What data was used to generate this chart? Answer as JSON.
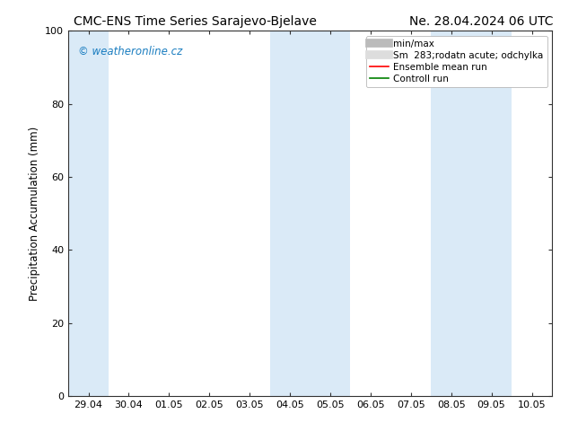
{
  "title_left": "CMC-ENS Time Series Sarajevo-Bjelave",
  "title_right": "Ne. 28.04.2024 06 UTC",
  "ylabel": "Precipitation Accumulation (mm)",
  "ylim": [
    0,
    100
  ],
  "yticks": [
    0,
    20,
    40,
    60,
    80,
    100
  ],
  "background_color": "#ffffff",
  "plot_bg_color": "#ffffff",
  "watermark": "© weatheronline.cz",
  "watermark_color": "#1a7dc0",
  "x_tick_labels": [
    "29.04",
    "30.04",
    "01.05",
    "02.05",
    "03.05",
    "04.05",
    "05.05",
    "06.05",
    "07.05",
    "08.05",
    "09.05",
    "10.05"
  ],
  "x_tick_positions": [
    0,
    1,
    2,
    3,
    4,
    5,
    6,
    7,
    8,
    9,
    10,
    11
  ],
  "xlim": [
    -0.5,
    11.5
  ],
  "shaded_bands": [
    {
      "x_start": -0.5,
      "x_end": 0.5,
      "color": "#daeaf7"
    },
    {
      "x_start": 4.5,
      "x_end": 6.5,
      "color": "#daeaf7"
    },
    {
      "x_start": 8.5,
      "x_end": 10.5,
      "color": "#daeaf7"
    }
  ],
  "legend_entries": [
    {
      "label": "min/max",
      "color": "#bbbbbb",
      "linewidth": 7,
      "linestyle": "-"
    },
    {
      "label": "Sm  283;rodatn acute; odchylka",
      "color": "#dddddd",
      "linewidth": 7,
      "linestyle": "-"
    },
    {
      "label": "Ensemble mean run",
      "color": "#ff0000",
      "linewidth": 1.2,
      "linestyle": "-"
    },
    {
      "label": "Controll run",
      "color": "#008000",
      "linewidth": 1.2,
      "linestyle": "-"
    }
  ],
  "title_fontsize": 10,
  "axis_fontsize": 8.5,
  "tick_fontsize": 8,
  "legend_fontsize": 7.5
}
